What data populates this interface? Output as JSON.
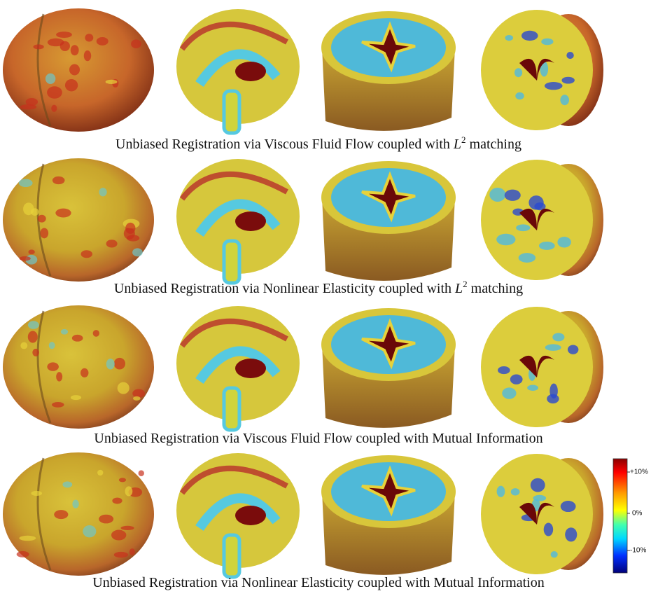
{
  "figure": {
    "rows": [
      {
        "caption": {
          "text": "Unbiased Registration via Viscous Fluid Flow coupled with ",
          "math": "L",
          "sup": "2",
          "after": " matching"
        }
      },
      {
        "caption": {
          "text": "Unbiased Registration via Nonlinear Elasticity coupled with ",
          "math": "L",
          "sup": "2",
          "after": " matching"
        }
      },
      {
        "caption": {
          "text": "Unbiased Registration via Viscous Fluid Flow coupled with Mutual Information"
        }
      },
      {
        "caption": {
          "text": "Unbiased Registration via Nonlinear Elasticity coupled with Mutual Information"
        }
      }
    ],
    "colorbar": {
      "labels": [
        "+10%",
        "0%",
        "-10%"
      ]
    }
  }
}
